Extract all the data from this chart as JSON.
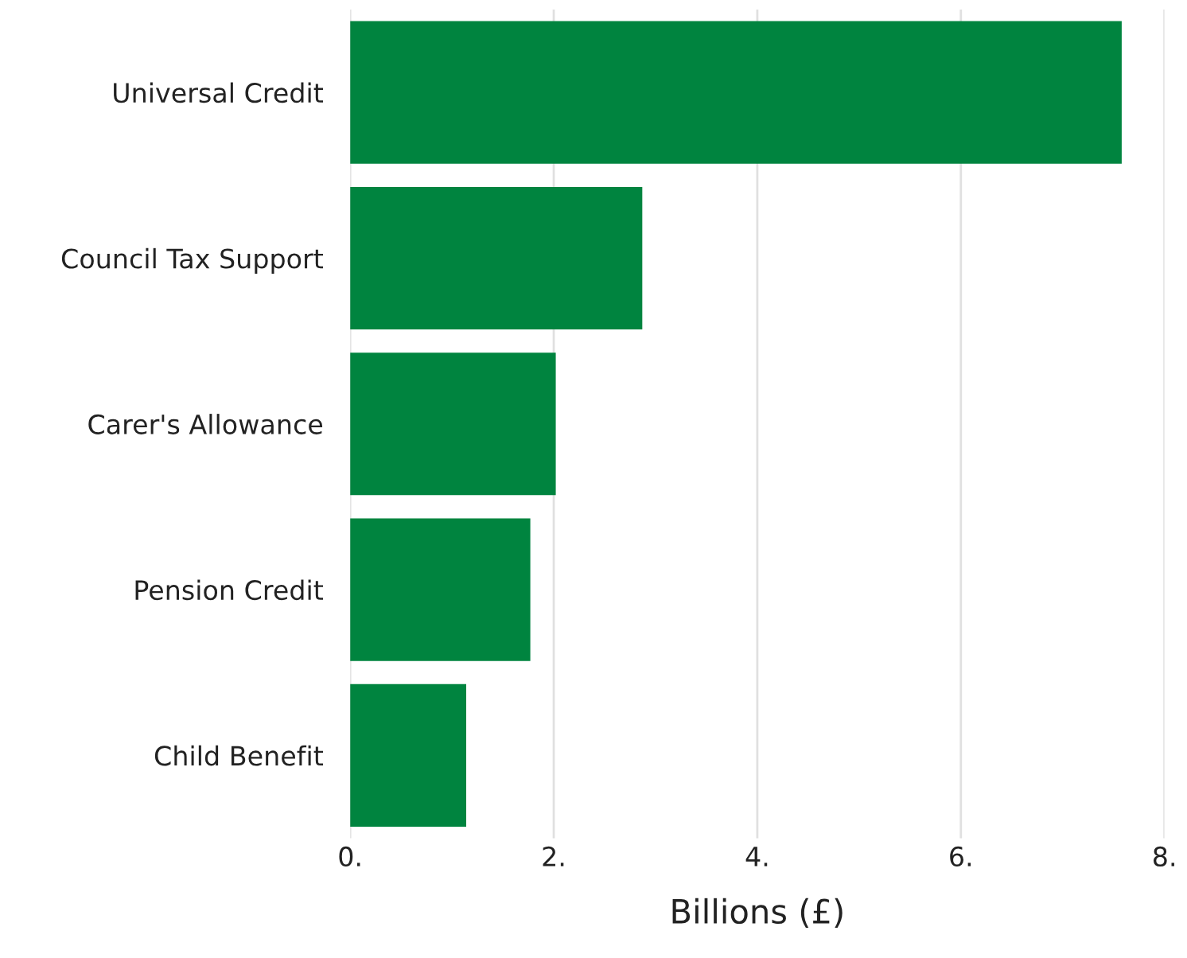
{
  "chart_data": {
    "type": "bar",
    "orientation": "horizontal",
    "xlabel": "Billions (£)",
    "categories": [
      "Universal Credit",
      "Council Tax Support",
      "Carer's Allowance",
      "Pension Credit",
      "Child Benefit"
    ],
    "values": [
      7.58,
      2.87,
      2.02,
      1.77,
      1.14
    ],
    "color": "#00843f",
    "xlim": [
      0,
      8
    ],
    "xticks": [
      {
        "value": 0,
        "label": "0."
      },
      {
        "value": 2,
        "label": "2."
      },
      {
        "value": 4,
        "label": "4."
      },
      {
        "value": 6,
        "label": "6."
      },
      {
        "value": 8,
        "label": "8."
      }
    ],
    "grid": "x",
    "legend": false
  }
}
